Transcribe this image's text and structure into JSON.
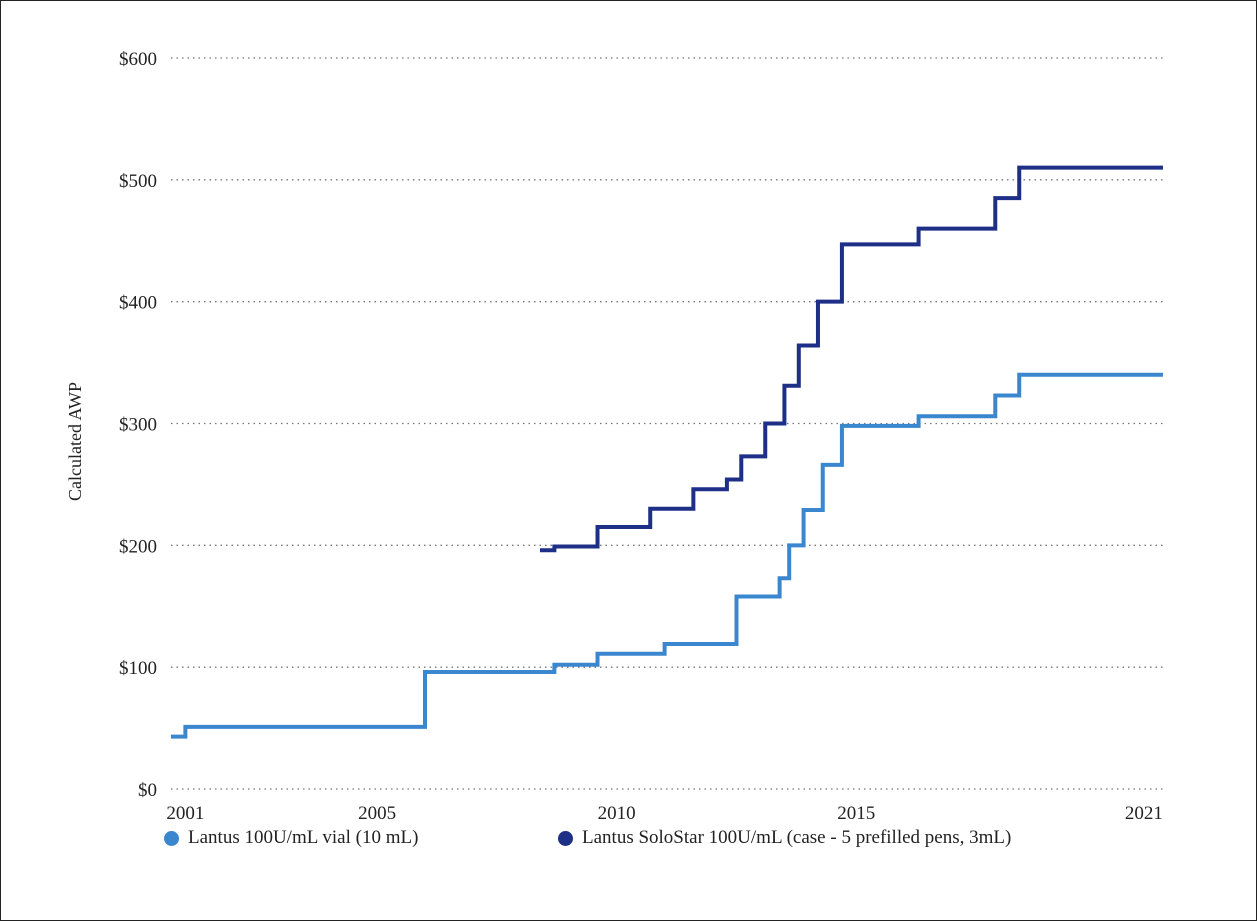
{
  "chart_data": {
    "type": "line",
    "step": true,
    "ylabel": "Calculated AWP",
    "xlabel": "",
    "xlim": [
      2000.7,
      2021.4
    ],
    "ylim": [
      0,
      600
    ],
    "x_ticks": [
      2001,
      2005,
      2010,
      2015,
      2021
    ],
    "x_tick_labels": [
      "2001",
      "2005",
      "2010",
      "2015",
      "2021"
    ],
    "y_ticks": [
      0,
      100,
      200,
      300,
      400,
      500,
      600
    ],
    "y_tick_labels": [
      "$0",
      "$100",
      "$200",
      "$300",
      "$400",
      "$500",
      "$600"
    ],
    "grid": "horizontal dotted",
    "legend_position": "bottom",
    "series": [
      {
        "name": "Lantus 100U/mL vial (10 mL)",
        "color": "#3a87d0",
        "points": [
          [
            2000.7,
            43
          ],
          [
            2001.0,
            51
          ],
          [
            2005.0,
            51
          ],
          [
            2006.0,
            96
          ],
          [
            2008.7,
            102
          ],
          [
            2009.6,
            111
          ],
          [
            2011.0,
            119
          ],
          [
            2012.5,
            158
          ],
          [
            2013.4,
            173
          ],
          [
            2013.6,
            200
          ],
          [
            2013.9,
            229
          ],
          [
            2014.3,
            266
          ],
          [
            2014.7,
            298
          ],
          [
            2016.3,
            306
          ],
          [
            2017.9,
            323
          ],
          [
            2018.4,
            340
          ],
          [
            2021.4,
            340
          ]
        ]
      },
      {
        "name": "Lantus SoloStar 100U/mL (case - 5 prefilled pens, 3mL)",
        "color": "#1d2f86",
        "points": [
          [
            2008.4,
            196
          ],
          [
            2008.7,
            199
          ],
          [
            2009.6,
            215
          ],
          [
            2010.7,
            230
          ],
          [
            2011.6,
            246
          ],
          [
            2012.3,
            254
          ],
          [
            2012.6,
            273
          ],
          [
            2013.1,
            300
          ],
          [
            2013.5,
            331
          ],
          [
            2013.8,
            364
          ],
          [
            2014.2,
            400
          ],
          [
            2014.7,
            447
          ],
          [
            2016.3,
            460
          ],
          [
            2017.9,
            485
          ],
          [
            2018.4,
            510
          ],
          [
            2021.4,
            510
          ]
        ]
      }
    ]
  }
}
